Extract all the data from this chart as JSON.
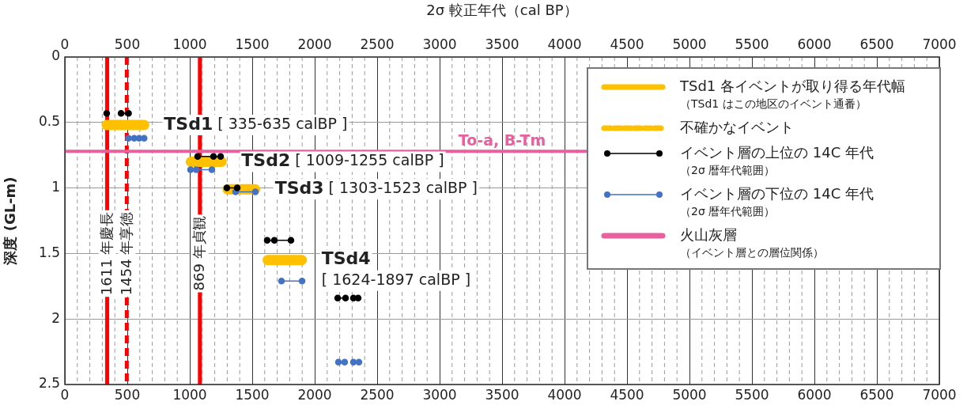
{
  "chart_data": {
    "type": "line",
    "x2label": "2σ 較正年代（cal BP）",
    "ylabel": "深度 (GL-m)",
    "xlim": [
      0,
      7000
    ],
    "x2lim": [
      0,
      7000
    ],
    "ylim": [
      2.5,
      0
    ],
    "xticks": [
      0,
      {
        "value": 100,
        "label": null
      },
      {
        "value": 200,
        "label": null
      },
      {
        "value": 300,
        "label": null
      },
      {
        "value": 400,
        "label": null
      },
      500,
      {
        "value": 600,
        "label": null
      },
      {
        "value": 700,
        "label": null
      },
      {
        "value": 800,
        "label": null
      },
      {
        "value": 900,
        "label": null
      },
      1000,
      {
        "value": 1100,
        "label": null
      },
      {
        "value": 1200,
        "label": null
      },
      {
        "value": 1300,
        "label": null
      },
      {
        "value": 1400,
        "label": null
      },
      1500,
      {
        "value": 1600,
        "label": null
      },
      {
        "value": 1700,
        "label": null
      },
      {
        "value": 1800,
        "label": null
      },
      {
        "value": 1900,
        "label": null
      },
      2000,
      {
        "value": 2100,
        "label": null
      },
      {
        "value": 2200,
        "label": null
      },
      {
        "value": 2300,
        "label": null
      },
      {
        "value": 2400,
        "label": null
      },
      2500,
      {
        "value": 2600,
        "label": null
      },
      {
        "value": 2700,
        "label": null
      },
      {
        "value": 2800,
        "label": null
      },
      {
        "value": 2900,
        "label": null
      },
      3000,
      {
        "value": 3100,
        "label": null
      },
      {
        "value": 3200,
        "label": null
      },
      {
        "value": 3300,
        "label": null
      },
      {
        "value": 3400,
        "label": null
      },
      3500,
      {
        "value": 3600,
        "label": null
      },
      {
        "value": 3700,
        "label": null
      },
      {
        "value": 3800,
        "label": null
      },
      {
        "value": 3900,
        "label": null
      },
      4000,
      {
        "value": 4100,
        "label": null
      },
      {
        "value": 4200,
        "label": null
      },
      {
        "value": 4300,
        "label": null
      },
      {
        "value": 4400,
        "label": null
      },
      4500,
      {
        "value": 4600,
        "label": null
      },
      {
        "value": 4700,
        "label": null
      },
      {
        "value": 4800,
        "label": null
      },
      {
        "value": 4900,
        "label": null
      },
      5000,
      {
        "value": 5100,
        "label": null
      },
      {
        "value": 5200,
        "label": null
      },
      {
        "value": 5300,
        "label": null
      },
      {
        "value": 5400,
        "label": null
      },
      5500,
      {
        "value": 5600,
        "label": null
      },
      {
        "value": 5700,
        "label": null
      },
      {
        "value": 5800,
        "label": null
      },
      {
        "value": 5900,
        "label": null
      },
      6000,
      {
        "value": 6100,
        "label": null
      },
      {
        "value": 6200,
        "label": null
      },
      {
        "value": 6300,
        "label": null
      },
      {
        "value": 6400,
        "label": null
      },
      6500,
      {
        "value": 6600,
        "label": null
      },
      {
        "value": 6700,
        "label": null
      },
      {
        "value": 6800,
        "label": null
      },
      {
        "value": 6900,
        "label": null
      },
      7000
    ],
    "x2ticks": [
      0,
      500,
      1000,
      1500,
      2000,
      2500,
      3000,
      3500,
      4000,
      4500,
      5000,
      5500,
      6000,
      6500,
      7000
    ],
    "yticks": [
      0,
      0.5,
      1,
      1.5,
      2,
      2.5
    ],
    "grid": true,
    "legend": "top right",
    "series": [
      {
        "name": "TSd1 各イベントが取り得る年代幅（TSd1 はこの地区のイベント通番）",
        "color": "#ffc000",
        "marker": "none",
        "line_style": "solid",
        "x": [
          335,
          635,
          null,
          1009,
          1255,
          null,
          1303,
          1523,
          null,
          1624,
          1897
        ],
        "values": [
          0.52,
          0.52,
          null,
          0.8,
          0.8,
          null,
          1.01,
          1.01,
          null,
          1.55,
          1.55
        ]
      },
      {
        "name": "不確かなイベント",
        "color": "#ffc000",
        "marker": "none",
        "line_style": "dashed"
      },
      {
        "name": "イベント層の上位の 14C 年代（2σ 暦年代範囲）",
        "color": "#000000",
        "marker": "circle",
        "line_style": "solid",
        "x": [
          335,
          null,
          450,
          510,
          null,
          1063,
          1190,
          1247,
          null,
          1297,
          1380,
          null,
          1620,
          1677,
          1810,
          null,
          2184,
          2247,
          null,
          2310,
          2348
        ],
        "values": [
          0.43,
          null,
          0.43,
          0.43,
          null,
          0.76,
          0.76,
          0.76,
          null,
          1.0,
          1.0,
          null,
          1.4,
          1.4,
          1.4,
          null,
          1.84,
          1.84,
          null,
          1.84,
          1.84
        ]
      },
      {
        "name": "イベント層の下位の 14C 年代（2σ 暦年代範囲）",
        "color": "#4472c4",
        "marker": "circle",
        "line_style": "solid",
        "x": [
          510,
          555,
          595,
          635,
          null,
          1006,
          1051,
          1177,
          null,
          1367,
          1525,
          null,
          1734,
          1899,
          null,
          2190,
          2240,
          null,
          2310,
          2354
        ],
        "values": [
          0.62,
          0.62,
          0.62,
          0.62,
          null,
          0.86,
          0.86,
          0.86,
          null,
          1.03,
          1.03,
          null,
          1.71,
          1.71,
          null,
          2.33,
          2.33,
          null,
          2.33,
          2.33
        ]
      },
      {
        "name": "火山灰層（イベント層との層位関係）",
        "color": "#e8609e",
        "marker": "none",
        "line_style": "solid"
      }
    ],
    "ref_lines": [
      {
        "axis": "x",
        "value": 339,
        "label": "1611 年慶長",
        "color": "#ff0000",
        "line_style": "solid"
      },
      {
        "axis": "x",
        "value": 496,
        "label": "1454 年享徳",
        "color": "#ff0000",
        "line_style": "dashed"
      },
      {
        "axis": "x",
        "value": 1081,
        "label": "869 年貞観",
        "color": "#ff0000",
        "line_style": "solid"
      },
      {
        "axis": "y",
        "value": 0.72,
        "label": "To-a, B-Tm",
        "color": "#e8609e",
        "line_style": "solid"
      }
    ],
    "annotations": [
      "TSd1 [ 335-635 calBP ]",
      "TSd2 [ 1009-1255 calBP ]",
      "TSd3 [ 1303-1523 calBP ]",
      "TSd4\n[ 1624-1897 calBP ]"
    ]
  }
}
